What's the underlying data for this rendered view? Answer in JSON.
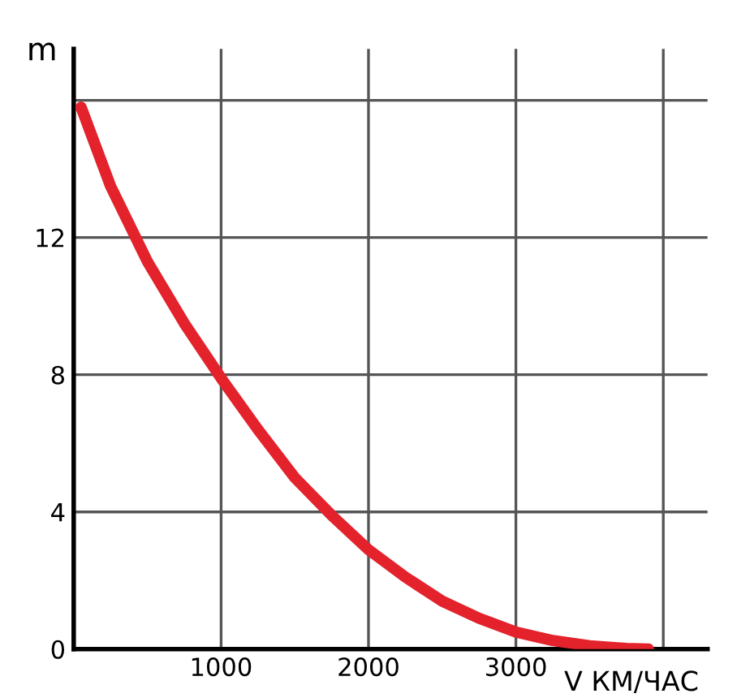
{
  "chart_data": {
    "type": "line",
    "xlabel": "V КМ/ЧАС",
    "ylabel": "m",
    "x": [
      50,
      250,
      500,
      750,
      1000,
      1250,
      1500,
      1750,
      2000,
      2250,
      2500,
      2750,
      3000,
      3250,
      3500,
      3750,
      3900
    ],
    "series": [
      {
        "color": "#e3222c",
        "values": [
          15.8,
          13.5,
          11.3,
          9.5,
          7.9,
          6.4,
          5.0,
          3.9,
          2.9,
          2.1,
          1.4,
          0.9,
          0.5,
          0.25,
          0.1,
          0.02,
          0
        ]
      }
    ],
    "xlim": [
      0,
      4300
    ],
    "ylim": [
      0,
      17.5
    ],
    "xticks": [
      {
        "value": 0,
        "label": null
      },
      1000,
      2000,
      3000,
      {
        "value": 4000,
        "label": null
      }
    ],
    "yticks": [
      0,
      4,
      8,
      12,
      {
        "value": 16,
        "label": null
      }
    ],
    "grid": true,
    "marker": "none",
    "line_style": "solid"
  }
}
